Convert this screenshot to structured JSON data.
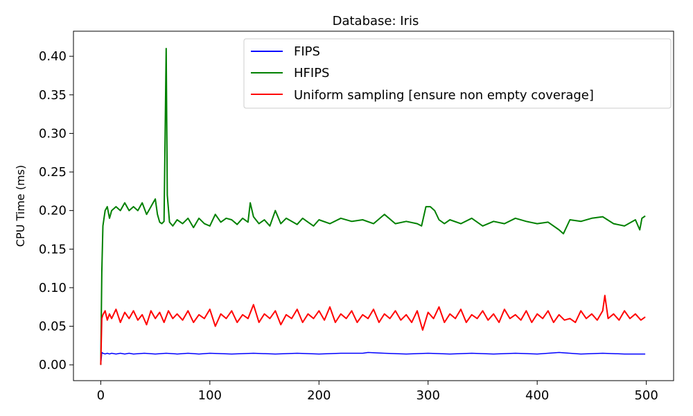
{
  "chart_data": {
    "type": "line",
    "title": "Database: Iris",
    "xlabel": "",
    "ylabel": "CPU Time (ms)",
    "xlim": [
      -25,
      525
    ],
    "ylim": [
      -0.0205,
      0.4325
    ],
    "xticks": [
      0,
      100,
      200,
      300,
      400,
      500
    ],
    "yticks": [
      0.0,
      0.05,
      0.1,
      0.15,
      0.2,
      0.25,
      0.3,
      0.35,
      0.4
    ],
    "xtick_labels": [
      "0",
      "100",
      "200",
      "300",
      "400",
      "500"
    ],
    "ytick_labels": [
      "0.00",
      "0.05",
      "0.10",
      "0.15",
      "0.20",
      "0.25",
      "0.30",
      "0.35",
      "0.40"
    ],
    "legend_position": "top-right",
    "grid": false,
    "series": [
      {
        "name": "FIPS",
        "color": "#0000ff",
        "x": [
          0,
          1,
          2,
          4,
          6,
          8,
          10,
          14,
          18,
          22,
          26,
          30,
          40,
          50,
          60,
          70,
          80,
          90,
          100,
          120,
          140,
          160,
          180,
          200,
          220,
          240,
          245,
          260,
          280,
          300,
          320,
          340,
          360,
          380,
          400,
          420,
          440,
          460,
          480,
          499
        ],
        "y": [
          0.0,
          0.016,
          0.015,
          0.014,
          0.015,
          0.014,
          0.015,
          0.014,
          0.015,
          0.014,
          0.015,
          0.014,
          0.015,
          0.014,
          0.015,
          0.014,
          0.015,
          0.014,
          0.015,
          0.014,
          0.015,
          0.014,
          0.015,
          0.014,
          0.015,
          0.015,
          0.016,
          0.015,
          0.014,
          0.015,
          0.014,
          0.015,
          0.014,
          0.015,
          0.014,
          0.016,
          0.014,
          0.015,
          0.014,
          0.014
        ]
      },
      {
        "name": "HFIPS",
        "color": "#008000",
        "x": [
          0,
          1,
          2,
          4,
          6,
          8,
          10,
          14,
          18,
          22,
          26,
          30,
          34,
          38,
          42,
          46,
          48,
          50,
          52,
          54,
          56,
          58,
          59,
          60,
          61,
          63,
          66,
          70,
          75,
          80,
          85,
          90,
          95,
          100,
          105,
          110,
          115,
          120,
          125,
          130,
          135,
          137,
          140,
          145,
          150,
          155,
          160,
          165,
          170,
          175,
          180,
          185,
          190,
          195,
          200,
          210,
          220,
          230,
          240,
          250,
          260,
          270,
          280,
          290,
          294,
          298,
          302,
          306,
          310,
          315,
          320,
          330,
          340,
          350,
          360,
          370,
          380,
          390,
          400,
          410,
          420,
          424,
          430,
          440,
          450,
          460,
          470,
          480,
          490,
          494,
          496,
          499
        ],
        "y": [
          0.0,
          0.12,
          0.18,
          0.2,
          0.205,
          0.19,
          0.2,
          0.205,
          0.2,
          0.21,
          0.2,
          0.205,
          0.2,
          0.21,
          0.195,
          0.205,
          0.21,
          0.215,
          0.195,
          0.185,
          0.183,
          0.186,
          0.3,
          0.41,
          0.22,
          0.185,
          0.18,
          0.188,
          0.183,
          0.19,
          0.178,
          0.19,
          0.183,
          0.18,
          0.195,
          0.185,
          0.19,
          0.188,
          0.182,
          0.19,
          0.185,
          0.21,
          0.192,
          0.183,
          0.188,
          0.18,
          0.2,
          0.183,
          0.19,
          0.186,
          0.182,
          0.19,
          0.185,
          0.18,
          0.188,
          0.183,
          0.19,
          0.186,
          0.188,
          0.183,
          0.195,
          0.183,
          0.186,
          0.183,
          0.18,
          0.205,
          0.205,
          0.2,
          0.188,
          0.183,
          0.188,
          0.183,
          0.19,
          0.18,
          0.186,
          0.183,
          0.19,
          0.186,
          0.183,
          0.185,
          0.175,
          0.17,
          0.188,
          0.186,
          0.19,
          0.192,
          0.183,
          0.18,
          0.188,
          0.175,
          0.19,
          0.193
        ]
      },
      {
        "name": "Uniform sampling [ensure non empty coverage]",
        "color": "#ff0000",
        "x": [
          0,
          1,
          2,
          4,
          6,
          8,
          10,
          14,
          18,
          22,
          26,
          30,
          34,
          38,
          42,
          46,
          50,
          54,
          58,
          62,
          66,
          70,
          75,
          80,
          85,
          90,
          95,
          100,
          105,
          110,
          115,
          120,
          125,
          130,
          135,
          140,
          145,
          150,
          155,
          160,
          165,
          170,
          175,
          180,
          185,
          190,
          195,
          200,
          205,
          210,
          215,
          220,
          225,
          230,
          235,
          240,
          245,
          250,
          255,
          260,
          265,
          270,
          275,
          280,
          285,
          290,
          295,
          300,
          305,
          310,
          315,
          320,
          325,
          330,
          335,
          340,
          345,
          350,
          355,
          360,
          365,
          370,
          375,
          380,
          385,
          390,
          395,
          400,
          405,
          410,
          415,
          420,
          425,
          430,
          435,
          440,
          445,
          450,
          455,
          460,
          462,
          465,
          470,
          475,
          480,
          485,
          490,
          495,
          499
        ],
        "y": [
          0.0,
          0.06,
          0.065,
          0.07,
          0.058,
          0.066,
          0.06,
          0.072,
          0.055,
          0.068,
          0.06,
          0.07,
          0.058,
          0.065,
          0.052,
          0.07,
          0.06,
          0.068,
          0.055,
          0.07,
          0.06,
          0.066,
          0.058,
          0.07,
          0.055,
          0.065,
          0.06,
          0.072,
          0.05,
          0.066,
          0.06,
          0.07,
          0.055,
          0.065,
          0.06,
          0.078,
          0.055,
          0.066,
          0.06,
          0.07,
          0.052,
          0.065,
          0.06,
          0.072,
          0.055,
          0.066,
          0.06,
          0.07,
          0.058,
          0.075,
          0.055,
          0.066,
          0.06,
          0.07,
          0.055,
          0.065,
          0.06,
          0.072,
          0.055,
          0.066,
          0.06,
          0.07,
          0.058,
          0.065,
          0.055,
          0.07,
          0.045,
          0.068,
          0.06,
          0.075,
          0.055,
          0.066,
          0.06,
          0.072,
          0.055,
          0.065,
          0.06,
          0.07,
          0.058,
          0.066,
          0.055,
          0.072,
          0.06,
          0.065,
          0.058,
          0.07,
          0.055,
          0.066,
          0.06,
          0.07,
          0.055,
          0.065,
          0.058,
          0.06,
          0.055,
          0.07,
          0.06,
          0.066,
          0.058,
          0.07,
          0.09,
          0.06,
          0.066,
          0.058,
          0.07,
          0.06,
          0.066,
          0.058,
          0.062
        ]
      }
    ]
  }
}
